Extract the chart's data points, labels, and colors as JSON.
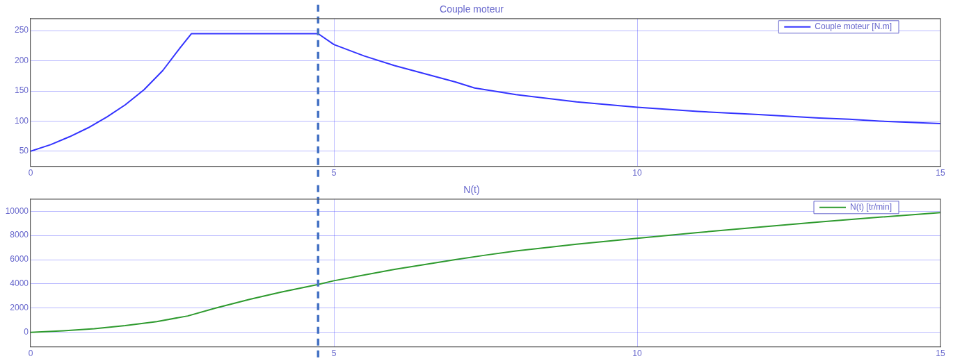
{
  "chart_data": [
    {
      "type": "line",
      "title": "Couple moteur",
      "xlim": [
        0,
        15
      ],
      "ylim": [
        25,
        270
      ],
      "xticks": [
        0,
        5,
        10,
        15
      ],
      "yticks": [
        50,
        100,
        150,
        200,
        250
      ],
      "grid": true,
      "legend": "top right",
      "marker": "none",
      "line_style": "solid",
      "ref_lines": [
        {
          "axis": "x",
          "value": 4.74,
          "color": "#4472c4",
          "line_style": "dashed"
        }
      ],
      "series": [
        {
          "name": "Couple moteur [N.m]",
          "color": "#3333ff",
          "x": [
            0,
            0.33,
            0.64,
            0.95,
            1.26,
            1.56,
            1.87,
            2.18,
            2.46,
            2.65,
            4.74,
            5,
            5.5,
            6,
            7,
            7.32,
            8,
            9,
            10,
            11,
            12,
            13,
            13.5,
            14,
            15
          ],
          "values": [
            50,
            61,
            74,
            89,
            107,
            127,
            152,
            184,
            221,
            245,
            245,
            227,
            208,
            192,
            165,
            155,
            144,
            132,
            123,
            116,
            111,
            105,
            103,
            100,
            96
          ]
        }
      ]
    },
    {
      "type": "line",
      "title": "N(t)",
      "xlim": [
        0,
        15
      ],
      "ylim": [
        -1200,
        11000
      ],
      "xticks": [
        0,
        5,
        10,
        15
      ],
      "yticks": [
        0,
        2000,
        4000,
        6000,
        8000,
        10000
      ],
      "grid": true,
      "legend": "top right",
      "marker": "none",
      "line_style": "solid",
      "ref_lines": [
        {
          "axis": "x",
          "value": 4.74,
          "color": "#4472c4",
          "line_style": "dashed"
        }
      ],
      "series": [
        {
          "name": "N(t) [tr/min]",
          "color": "#2e9a2e",
          "x": [
            0,
            0.54,
            1.05,
            1.56,
            2.08,
            2.59,
            3.05,
            3.62,
            4.13,
            4.74,
            5,
            6,
            7,
            7.51,
            8,
            9,
            10,
            11,
            12,
            13,
            14,
            15
          ],
          "values": [
            0,
            130,
            300,
            560,
            890,
            1350,
            2000,
            2730,
            3320,
            3950,
            4260,
            5200,
            6000,
            6380,
            6720,
            7270,
            7770,
            8240,
            8680,
            9110,
            9510,
            9890
          ]
        }
      ]
    }
  ]
}
